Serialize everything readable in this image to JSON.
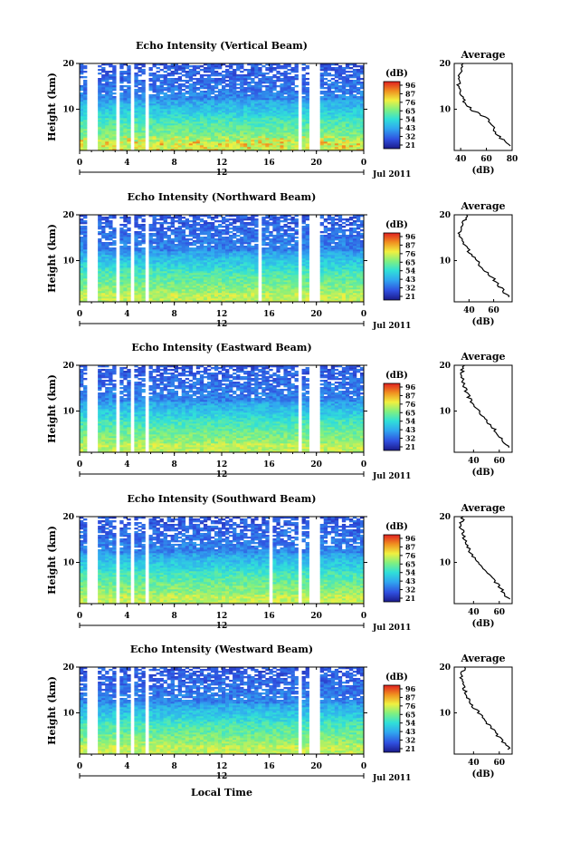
{
  "figure": {
    "date_label": "Jul 2011",
    "xlabel": "Local Time"
  },
  "chart_data": [
    {
      "type": "heatmap",
      "title": "Echo Intensity (Vertical Beam)",
      "ylabel": "Height (km)",
      "x_ticks": [
        "0",
        "4",
        "8",
        "12",
        "16",
        "20",
        "0"
      ],
      "y_ticks": [
        "10",
        "20"
      ],
      "y_range": [
        1,
        20
      ],
      "x_range": [
        0,
        24
      ],
      "midnight_label": "12",
      "colorbar_label": "(dB)",
      "colorbar_ticks": [
        "96",
        "87",
        "76",
        "65",
        "54",
        "43",
        "32",
        "21"
      ],
      "gaps_hours": [
        [
          0.6,
          1.5
        ],
        [
          3.1,
          3.5
        ],
        [
          4.2,
          4.7
        ],
        [
          5.4,
          5.9
        ],
        [
          18.5,
          18.9
        ],
        [
          19.5,
          20.2
        ]
      ],
      "average_profile": {
        "title": "Average",
        "xlabel": "(dB)",
        "x_ticks": [
          "40",
          "60",
          "80"
        ],
        "x_range": [
          35,
          80
        ],
        "heights": [
          2,
          4,
          6,
          8,
          10,
          12,
          14,
          16,
          18,
          20
        ],
        "values": [
          78,
          70,
          65,
          60,
          48,
          42,
          40,
          38,
          40,
          42
        ]
      }
    },
    {
      "type": "heatmap",
      "title": "Echo Intensity (Northward Beam)",
      "ylabel": "Height (km)",
      "x_ticks": [
        "0",
        "4",
        "8",
        "12",
        "16",
        "20",
        "0"
      ],
      "y_ticks": [
        "10",
        "20"
      ],
      "y_range": [
        1,
        20
      ],
      "x_range": [
        0,
        24
      ],
      "midnight_label": "12",
      "colorbar_label": "(dB)",
      "colorbar_ticks": [
        "96",
        "87",
        "76",
        "65",
        "54",
        "43",
        "32",
        "21"
      ],
      "gaps_hours": [
        [
          0.6,
          1.5
        ],
        [
          3.1,
          3.5
        ],
        [
          4.2,
          4.7
        ],
        [
          5.4,
          5.9
        ],
        [
          11.9,
          12.1
        ],
        [
          15.0,
          15.3
        ],
        [
          18.5,
          18.9
        ],
        [
          19.5,
          20.2
        ]
      ],
      "average_profile": {
        "title": "Average",
        "xlabel": "(dB)",
        "x_ticks": [
          "40",
          "60"
        ],
        "x_range": [
          28,
          75
        ],
        "heights": [
          2,
          4,
          6,
          8,
          10,
          12,
          14,
          16,
          18,
          20
        ],
        "values": [
          72,
          66,
          60,
          52,
          46,
          40,
          36,
          32,
          35,
          38
        ]
      }
    },
    {
      "type": "heatmap",
      "title": "Echo Intensity (Eastward Beam)",
      "ylabel": "Height (km)",
      "x_ticks": [
        "0",
        "4",
        "8",
        "12",
        "16",
        "20",
        "0"
      ],
      "y_ticks": [
        "10",
        "20"
      ],
      "y_range": [
        1,
        20
      ],
      "x_range": [
        0,
        24
      ],
      "midnight_label": "12",
      "colorbar_label": "(dB)",
      "colorbar_ticks": [
        "96",
        "87",
        "76",
        "65",
        "54",
        "43",
        "32",
        "21"
      ],
      "gaps_hours": [
        [
          0.6,
          1.5
        ],
        [
          3.1,
          3.5
        ],
        [
          4.2,
          4.7
        ],
        [
          5.4,
          5.9
        ],
        [
          18.5,
          18.9
        ],
        [
          19.5,
          20.2
        ]
      ],
      "average_profile": {
        "title": "Average",
        "xlabel": "(dB)",
        "x_ticks": [
          "40",
          "60"
        ],
        "x_range": [
          25,
          70
        ],
        "heights": [
          2,
          4,
          6,
          8,
          10,
          12,
          14,
          16,
          18,
          20
        ],
        "values": [
          68,
          62,
          56,
          50,
          44,
          38,
          35,
          32,
          30,
          33
        ]
      }
    },
    {
      "type": "heatmap",
      "title": "Echo Intensity (Southward Beam)",
      "ylabel": "Height (km)",
      "x_ticks": [
        "0",
        "4",
        "8",
        "12",
        "16",
        "20",
        "0"
      ],
      "y_ticks": [
        "10",
        "20"
      ],
      "y_range": [
        1,
        20
      ],
      "x_range": [
        0,
        24
      ],
      "midnight_label": "12",
      "colorbar_label": "(dB)",
      "colorbar_ticks": [
        "96",
        "87",
        "76",
        "65",
        "54",
        "43",
        "32",
        "21"
      ],
      "gaps_hours": [
        [
          0.6,
          1.5
        ],
        [
          3.1,
          3.5
        ],
        [
          4.2,
          4.7
        ],
        [
          5.4,
          5.9
        ],
        [
          15.9,
          16.2
        ],
        [
          18.5,
          18.9
        ],
        [
          19.5,
          20.2
        ]
      ],
      "average_profile": {
        "title": "Average",
        "xlabel": "(dB)",
        "x_ticks": [
          "40",
          "60"
        ],
        "x_range": [
          25,
          70
        ],
        "heights": [
          2,
          4,
          6,
          8,
          10,
          12,
          14,
          16,
          18,
          20
        ],
        "values": [
          67,
          62,
          56,
          50,
          44,
          38,
          35,
          32,
          30,
          32
        ]
      }
    },
    {
      "type": "heatmap",
      "title": "Echo Intensity (Westward Beam)",
      "ylabel": "Height (km)",
      "x_ticks": [
        "0",
        "4",
        "8",
        "12",
        "16",
        "20",
        "0"
      ],
      "y_ticks": [
        "10",
        "20"
      ],
      "y_range": [
        1,
        20
      ],
      "x_range": [
        0,
        24
      ],
      "midnight_label": "12",
      "colorbar_label": "(dB)",
      "colorbar_ticks": [
        "96",
        "87",
        "76",
        "65",
        "54",
        "43",
        "32",
        "21"
      ],
      "gaps_hours": [
        [
          0.6,
          1.5
        ],
        [
          3.1,
          3.5
        ],
        [
          4.2,
          4.7
        ],
        [
          5.4,
          5.9
        ],
        [
          18.5,
          18.9
        ],
        [
          19.5,
          20.2
        ]
      ],
      "average_profile": {
        "title": "Average",
        "xlabel": "(dB)",
        "x_ticks": [
          "40",
          "60"
        ],
        "x_range": [
          25,
          70
        ],
        "heights": [
          2,
          4,
          6,
          8,
          10,
          12,
          14,
          16,
          18,
          20
        ],
        "values": [
          68,
          62,
          56,
          50,
          44,
          38,
          35,
          32,
          30,
          33
        ]
      }
    }
  ]
}
